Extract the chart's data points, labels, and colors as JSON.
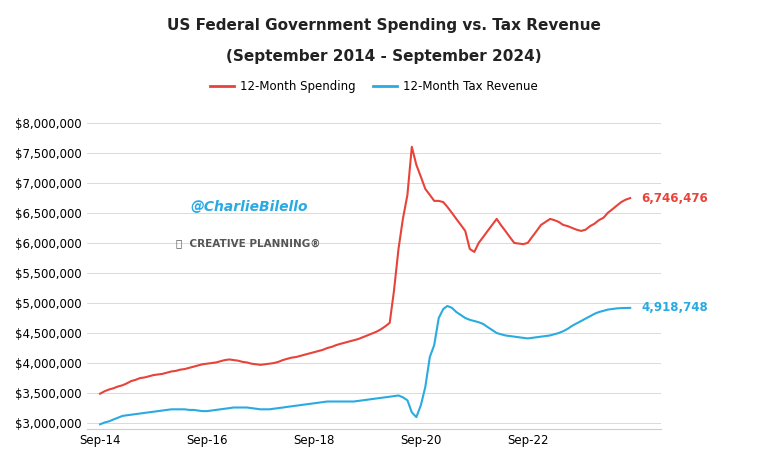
{
  "title_line1": "US Federal Government Spending vs. Tax Revenue",
  "title_line2": "(September 2014 - September 2024)",
  "spending_label": "12-Month Spending",
  "revenue_label": "12-Month Tax Revenue",
  "spending_color": "#E8433A",
  "revenue_color": "#29ABE2",
  "spending_end_value": "6,746,476",
  "revenue_end_value": "4,918,748",
  "watermark": "@CharlieBilello",
  "watermark_color": "#29ABE2",
  "logo_text": "CREATIVE PLANNING",
  "ylim_min": 2900000,
  "ylim_max": 8200000,
  "yticks": [
    3000000,
    3500000,
    4000000,
    4500000,
    5000000,
    5500000,
    6000000,
    6500000,
    7000000,
    7500000,
    8000000
  ],
  "background_color": "#FFFFFF",
  "spending_data": [
    3490000,
    3530000,
    3560000,
    3580000,
    3610000,
    3630000,
    3660000,
    3700000,
    3720000,
    3750000,
    3760000,
    3780000,
    3800000,
    3810000,
    3820000,
    3840000,
    3860000,
    3870000,
    3890000,
    3900000,
    3920000,
    3940000,
    3960000,
    3980000,
    3990000,
    4000000,
    4010000,
    4030000,
    4050000,
    4060000,
    4050000,
    4040000,
    4020000,
    4010000,
    3990000,
    3980000,
    3970000,
    3980000,
    3990000,
    4000000,
    4020000,
    4050000,
    4070000,
    4090000,
    4100000,
    4120000,
    4140000,
    4160000,
    4180000,
    4200000,
    4220000,
    4250000,
    4270000,
    4300000,
    4320000,
    4340000,
    4360000,
    4380000,
    4400000,
    4430000,
    4460000,
    4490000,
    4520000,
    4560000,
    4610000,
    4670000,
    5200000,
    5900000,
    6400000,
    6800000,
    7600000,
    7300000,
    7100000,
    6900000,
    6800000,
    6700000,
    6700000,
    6680000,
    6600000,
    6500000,
    6400000,
    6300000,
    6200000,
    5900000,
    5850000,
    6000000,
    6100000,
    6200000,
    6300000,
    6400000,
    6300000,
    6200000,
    6100000,
    6000000,
    5990000,
    5980000,
    6000000,
    6100000,
    6200000,
    6300000,
    6350000,
    6400000,
    6380000,
    6350000,
    6300000,
    6280000,
    6250000,
    6220000,
    6200000,
    6220000,
    6280000,
    6320000,
    6380000,
    6420000,
    6500000,
    6560000,
    6620000,
    6680000,
    6720000,
    6746476
  ],
  "revenue_data": [
    2980000,
    3010000,
    3030000,
    3060000,
    3090000,
    3120000,
    3130000,
    3140000,
    3150000,
    3160000,
    3170000,
    3180000,
    3190000,
    3200000,
    3210000,
    3220000,
    3230000,
    3230000,
    3230000,
    3230000,
    3220000,
    3220000,
    3210000,
    3200000,
    3200000,
    3210000,
    3220000,
    3230000,
    3240000,
    3250000,
    3260000,
    3260000,
    3260000,
    3260000,
    3250000,
    3240000,
    3230000,
    3230000,
    3230000,
    3240000,
    3250000,
    3260000,
    3270000,
    3280000,
    3290000,
    3300000,
    3310000,
    3320000,
    3330000,
    3340000,
    3350000,
    3360000,
    3360000,
    3360000,
    3360000,
    3360000,
    3360000,
    3360000,
    3370000,
    3380000,
    3390000,
    3400000,
    3410000,
    3420000,
    3430000,
    3440000,
    3450000,
    3460000,
    3430000,
    3380000,
    3180000,
    3100000,
    3300000,
    3600000,
    4100000,
    4300000,
    4750000,
    4900000,
    4950000,
    4920000,
    4850000,
    4800000,
    4750000,
    4720000,
    4700000,
    4680000,
    4650000,
    4600000,
    4550000,
    4500000,
    4480000,
    4460000,
    4450000,
    4440000,
    4430000,
    4420000,
    4410000,
    4420000,
    4430000,
    4440000,
    4450000,
    4460000,
    4480000,
    4500000,
    4530000,
    4570000,
    4620000,
    4660000,
    4700000,
    4740000,
    4780000,
    4820000,
    4850000,
    4870000,
    4890000,
    4900000,
    4910000,
    4915000,
    4917000,
    4918748
  ]
}
